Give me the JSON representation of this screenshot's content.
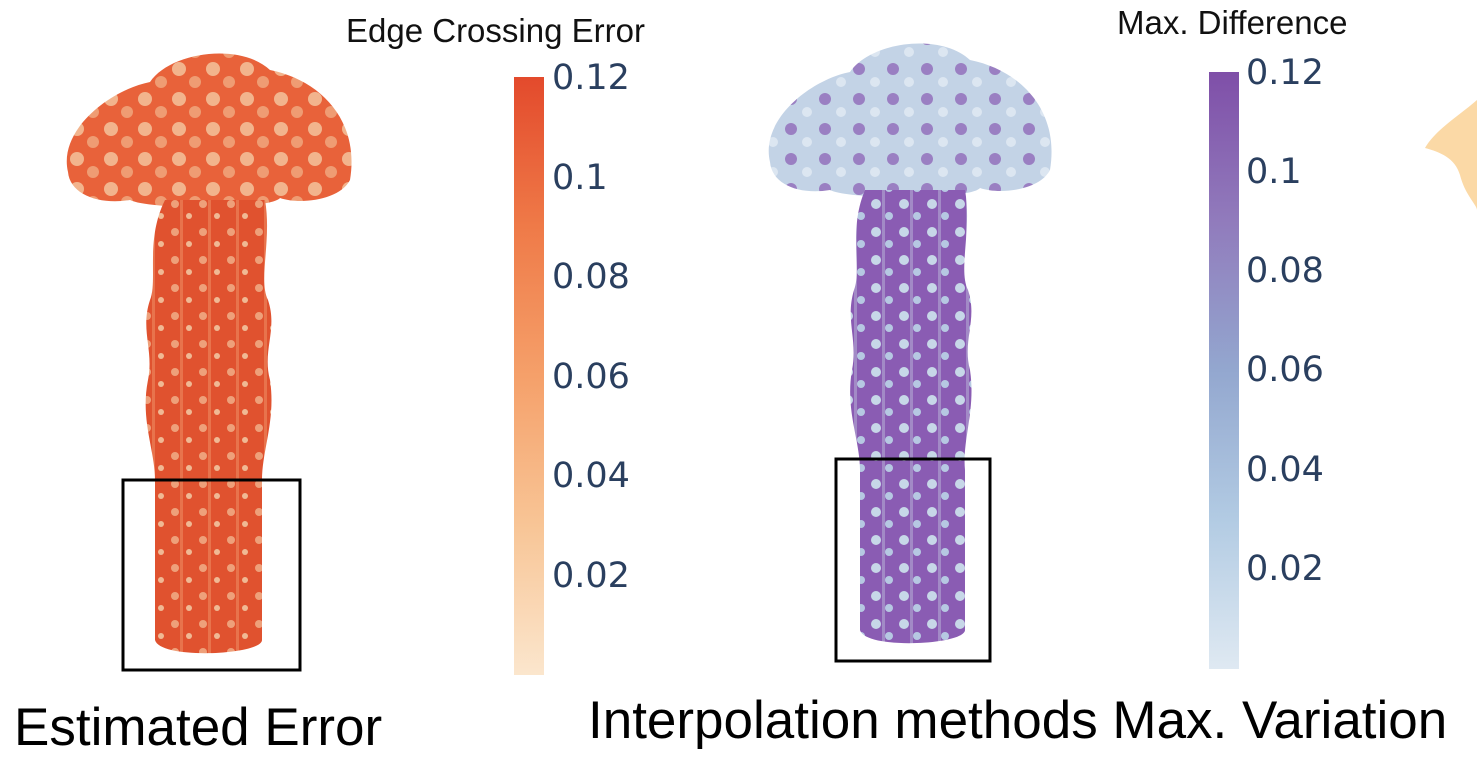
{
  "left_panel": {
    "colorbar_title": "Edge Crossing Error",
    "ticks": [
      "0.12",
      "0.1",
      "0.08",
      "0.06",
      "0.04",
      "0.02"
    ],
    "caption": "Estimated Error",
    "colors": {
      "high": "#e34a2c",
      "low": "#fbe6cd"
    }
  },
  "right_panel": {
    "colorbar_title": "Max. Difference",
    "ticks": [
      "0.12",
      "0.1",
      "0.08",
      "0.06",
      "0.04",
      "0.02"
    ],
    "caption": "Interpolation methods Max. Variation",
    "colors": {
      "high": "#7f4fa8",
      "low": "#dfe9f2"
    }
  }
}
